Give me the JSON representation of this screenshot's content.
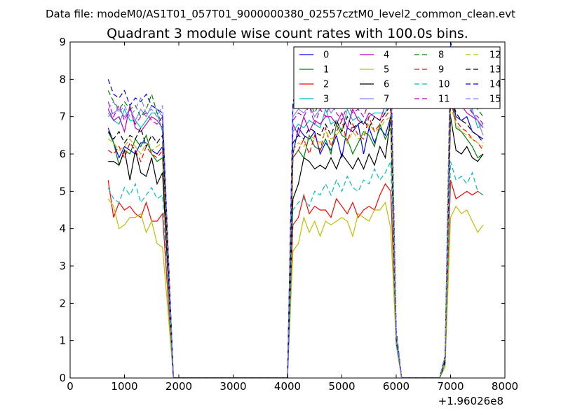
{
  "chart_data": {
    "type": "line",
    "suptitle": "Data file: modeM0/AS1T01_057T01_9000000380_02557cztM0_level2_common_clean.evt",
    "title": "Quadrant 3 module wise count rates with 100.0s bins.",
    "xlabel": "",
    "ylabel": "",
    "x_offset_label": "+1.96026e8",
    "xlim": [
      0,
      8000
    ],
    "ylim": [
      0,
      9
    ],
    "xticks": [
      0,
      1000,
      2000,
      3000,
      4000,
      5000,
      6000,
      7000,
      8000
    ],
    "yticks": [
      0,
      1,
      2,
      3,
      4,
      5,
      6,
      7,
      8,
      9
    ],
    "grid": false,
    "legend_position": "top-right",
    "x": [
      700,
      800,
      900,
      1000,
      1100,
      1200,
      1300,
      1400,
      1500,
      1600,
      1700,
      1800,
      1900,
      2000,
      2100,
      2200,
      2300,
      2400,
      2500,
      2600,
      2700,
      2800,
      2900,
      3000,
      3100,
      3200,
      3300,
      3400,
      3500,
      3600,
      3700,
      3800,
      3900,
      4000,
      4100,
      4200,
      4300,
      4400,
      4500,
      4600,
      4700,
      4800,
      4900,
      5000,
      5100,
      5200,
      5300,
      5400,
      5500,
      5600,
      5700,
      5800,
      5900,
      6000,
      6100,
      6200,
      6300,
      6400,
      6500,
      6600,
      6700,
      6800,
      6900,
      7000,
      7100,
      7200,
      7300,
      7400,
      7500,
      7600
    ],
    "series": [
      {
        "name": "0",
        "color": "#0000ff",
        "dash": "",
        "values": [
          6.7,
          6.3,
          5.9,
          6.2,
          6.1,
          6.0,
          6.3,
          6.3,
          6.1,
          6.0,
          6.2,
          3.0,
          0,
          0,
          0,
          0,
          0,
          0,
          0,
          0,
          0,
          0,
          0,
          0,
          0,
          0,
          0,
          0,
          0,
          0,
          0,
          0,
          0,
          0,
          6.0,
          6.7,
          6.5,
          6.4,
          6.6,
          6.0,
          6.3,
          6.1,
          6.5,
          5.9,
          6.7,
          6.6,
          6.8,
          6.0,
          6.7,
          6.3,
          6.7,
          6.5,
          7.0,
          1.0,
          0,
          0,
          0,
          0,
          0,
          0,
          0,
          0,
          0.5,
          7.7,
          7.0,
          6.9,
          7.0,
          6.6,
          6.5,
          6.4
        ]
      },
      {
        "name": "1",
        "color": "#008000",
        "dash": "",
        "values": [
          6.6,
          6.3,
          5.7,
          6.1,
          6.0,
          6.4,
          6.2,
          6.5,
          6.0,
          5.8,
          5.9,
          3.0,
          0,
          0,
          0,
          0,
          0,
          0,
          0,
          0,
          0,
          0,
          0,
          0,
          0,
          0,
          0,
          0,
          0,
          0,
          0,
          0,
          0,
          0,
          5.9,
          6.1,
          5.9,
          6.5,
          6.2,
          6.1,
          6.4,
          6.0,
          6.8,
          6.5,
          6.4,
          6.0,
          6.3,
          6.6,
          6.5,
          6.2,
          6.8,
          6.4,
          6.7,
          1.0,
          0,
          0,
          0,
          0,
          0,
          0,
          0,
          0,
          0.5,
          7.8,
          6.7,
          6.6,
          6.4,
          6.2,
          5.9,
          6.0
        ]
      },
      {
        "name": "2",
        "color": "#ff0000",
        "dash": "",
        "values": [
          5.3,
          4.3,
          4.7,
          4.5,
          4.6,
          4.4,
          4.3,
          4.7,
          4.2,
          4.2,
          4.4,
          2.2,
          0,
          0,
          0,
          0,
          0,
          0,
          0,
          0,
          0,
          0,
          0,
          0,
          0,
          0,
          0,
          0,
          0,
          0,
          0,
          0,
          0,
          0,
          4.1,
          4.3,
          4.9,
          4.4,
          4.6,
          4.5,
          4.5,
          4.3,
          4.8,
          4.6,
          4.4,
          4.7,
          4.3,
          4.5,
          4.6,
          4.5,
          4.9,
          5.2,
          5.0,
          1.0,
          0,
          0,
          0,
          0,
          0,
          0,
          0,
          0,
          0.4,
          5.3,
          4.8,
          4.9,
          5.0,
          4.9,
          5.0,
          4.9
        ]
      },
      {
        "name": "3",
        "color": "#00bfbf",
        "dash": "",
        "values": [
          7.1,
          6.9,
          6.8,
          7.2,
          6.9,
          6.9,
          6.7,
          6.9,
          7.1,
          7.1,
          6.6,
          3.3,
          0,
          0,
          0,
          0,
          0,
          0,
          0,
          0,
          0,
          0,
          0,
          0,
          0,
          0,
          0,
          0,
          0,
          0,
          0,
          0,
          0,
          0,
          6.6,
          6.8,
          6.7,
          6.9,
          6.8,
          6.7,
          7.2,
          6.8,
          6.9,
          6.6,
          7.2,
          6.9,
          7.0,
          6.8,
          7.0,
          7.1,
          7.1,
          7.1,
          7.5,
          1.1,
          0,
          0,
          0,
          0,
          0,
          0,
          0,
          0,
          0.5,
          7.9,
          7.5,
          7.3,
          7.4,
          7.2,
          6.7,
          6.8
        ]
      },
      {
        "name": "4",
        "color": "#bf00bf",
        "dash": "",
        "values": [
          7.2,
          6.9,
          7.0,
          6.6,
          7.3,
          6.7,
          6.6,
          6.8,
          7.0,
          6.9,
          6.7,
          3.3,
          0,
          0,
          0,
          0,
          0,
          0,
          0,
          0,
          0,
          0,
          0,
          0,
          0,
          0,
          0,
          0,
          0,
          0,
          0,
          0,
          0,
          0,
          6.8,
          6.5,
          7.0,
          6.6,
          6.9,
          6.8,
          7.0,
          7.0,
          6.8,
          7.1,
          6.7,
          7.2,
          6.9,
          6.8,
          7.1,
          7.0,
          6.9,
          7.3,
          7.5,
          1.1,
          0,
          0,
          0,
          0,
          0,
          0,
          0,
          0,
          0.5,
          8.0,
          7.6,
          7.3,
          7.1,
          7.0,
          6.9,
          6.7
        ]
      },
      {
        "name": "5",
        "color": "#bfbf00",
        "dash": "",
        "values": [
          4.8,
          4.6,
          4.0,
          4.1,
          4.3,
          4.3,
          4.4,
          3.9,
          4.2,
          3.6,
          3.5,
          1.8,
          0,
          0,
          0,
          0,
          0,
          0,
          0,
          0,
          0,
          0,
          0,
          0,
          0,
          0,
          0,
          0,
          0,
          0,
          0,
          0,
          0,
          0,
          3.4,
          3.6,
          4.3,
          3.9,
          4.2,
          3.8,
          4.2,
          4.1,
          4.2,
          4.3,
          4.2,
          3.8,
          4.4,
          4.3,
          4.2,
          4.5,
          4.5,
          4.7,
          4.0,
          0.9,
          0,
          0,
          0,
          0,
          0,
          0,
          0,
          0,
          0.3,
          4.3,
          4.6,
          4.4,
          4.5,
          4.2,
          3.9,
          4.1
        ]
      },
      {
        "name": "6",
        "color": "#000000",
        "dash": "",
        "values": [
          5.8,
          5.8,
          5.7,
          6.1,
          5.3,
          6.1,
          5.5,
          5.4,
          5.9,
          5.2,
          5.5,
          2.8,
          0,
          0,
          0,
          0,
          0,
          0,
          0,
          0,
          0,
          0,
          0,
          0,
          0,
          0,
          0,
          0,
          0,
          0,
          0,
          0,
          0,
          0,
          4.8,
          5.2,
          5.9,
          5.8,
          5.6,
          5.7,
          5.6,
          5.9,
          5.6,
          6.0,
          5.8,
          5.6,
          5.9,
          5.6,
          6.0,
          5.7,
          6.2,
          5.9,
          7.0,
          1.0,
          0,
          0,
          0,
          0,
          0,
          0,
          0,
          0,
          0.4,
          7.0,
          6.1,
          6.0,
          6.2,
          5.9,
          5.8,
          6.0
        ]
      },
      {
        "name": "7",
        "color": "#7f7fff",
        "dash": "",
        "values": [
          7.0,
          7.1,
          7.2,
          7.0,
          7.2,
          6.9,
          7.2,
          7.0,
          7.3,
          7.2,
          7.0,
          3.4,
          0,
          0,
          0,
          0,
          0,
          0,
          0,
          0,
          0,
          0,
          0,
          0,
          0,
          0,
          0,
          0,
          0,
          0,
          0,
          0,
          0,
          0,
          7.0,
          7.2,
          7.1,
          7.3,
          7.0,
          7.2,
          7.4,
          7.1,
          7.3,
          7.6,
          7.2,
          7.4,
          7.5,
          7.3,
          7.7,
          7.4,
          7.8,
          8.1,
          8.3,
          1.2,
          0,
          0,
          0,
          0,
          0,
          0,
          0,
          0,
          0.6,
          8.5,
          8.2,
          8.0,
          7.6,
          7.1,
          6.9,
          6.5
        ]
      },
      {
        "name": "8",
        "color": "#008000",
        "dash": "7,4",
        "values": [
          7.7,
          7.4,
          7.2,
          7.4,
          7.2,
          7.3,
          7.0,
          7.2,
          7.6,
          7.1,
          6.8,
          3.4,
          0,
          0,
          0,
          0,
          0,
          0,
          0,
          0,
          0,
          0,
          0,
          0,
          0,
          0,
          0,
          0,
          0,
          0,
          0,
          0,
          0,
          0,
          7.3,
          7.6,
          7.2,
          7.4,
          7.1,
          7.4,
          7.6,
          7.3,
          7.8,
          7.5,
          7.3,
          7.6,
          7.8,
          7.5,
          7.7,
          7.6,
          7.9,
          7.8,
          8.0,
          1.2,
          0,
          0,
          0,
          0,
          0,
          0,
          0,
          0,
          0.6,
          8.3,
          7.7,
          7.5,
          7.4,
          7.3,
          7.2,
          7.0
        ]
      },
      {
        "name": "9",
        "color": "#ff0000",
        "dash": "7,4",
        "values": [
          6.1,
          6.0,
          6.2,
          5.9,
          6.3,
          6.1,
          5.8,
          6.2,
          6.0,
          5.9,
          6.1,
          3.0,
          0,
          0,
          0,
          0,
          0,
          0,
          0,
          0,
          0,
          0,
          0,
          0,
          0,
          0,
          0,
          0,
          0,
          0,
          0,
          0,
          0,
          0,
          5.9,
          6.1,
          6.4,
          6.0,
          6.5,
          6.1,
          6.7,
          6.2,
          6.6,
          6.9,
          6.3,
          6.8,
          6.5,
          6.4,
          7.0,
          6.6,
          6.8,
          7.0,
          7.2,
          1.1,
          0,
          0,
          0,
          0,
          0,
          0,
          0,
          0,
          0.5,
          7.4,
          6.9,
          6.7,
          6.6,
          6.4,
          6.3,
          6.1
        ]
      },
      {
        "name": "10",
        "color": "#00bfbf",
        "dash": "7,4",
        "values": [
          5.1,
          4.8,
          4.7,
          5.1,
          4.9,
          5.2,
          4.7,
          4.9,
          5.1,
          4.8,
          4.9,
          2.4,
          0,
          0,
          0,
          0,
          0,
          0,
          0,
          0,
          0,
          0,
          0,
          0,
          0,
          0,
          0,
          0,
          0,
          0,
          0,
          0,
          0,
          0,
          4.5,
          4.7,
          4.8,
          4.6,
          5.0,
          4.9,
          5.2,
          4.9,
          5.3,
          5.0,
          5.4,
          5.1,
          5.0,
          5.3,
          5.2,
          5.6,
          5.3,
          5.5,
          5.8,
          0.9,
          0,
          0,
          0,
          0,
          0,
          0,
          0,
          0,
          0.4,
          5.8,
          5.3,
          5.4,
          5.2,
          5.5,
          5.0,
          4.9
        ]
      },
      {
        "name": "11",
        "color": "#bf00bf",
        "dash": "7,4",
        "values": [
          7.4,
          7.0,
          7.3,
          6.9,
          7.2,
          6.8,
          7.0,
          7.1,
          6.9,
          6.8,
          7.0,
          3.4,
          0,
          0,
          0,
          0,
          0,
          0,
          0,
          0,
          0,
          0,
          0,
          0,
          0,
          0,
          0,
          0,
          0,
          0,
          0,
          0,
          0,
          0,
          6.9,
          7.1,
          7.0,
          7.3,
          6.8,
          7.2,
          7.0,
          7.4,
          7.1,
          6.9,
          7.3,
          7.1,
          7.2,
          7.0,
          7.4,
          7.2,
          7.5,
          7.4,
          7.6,
          1.1,
          0,
          0,
          0,
          0,
          0,
          0,
          0,
          0,
          0.5,
          8.1,
          7.6,
          7.4,
          7.3,
          7.1,
          7.0,
          6.8
        ]
      },
      {
        "name": "12",
        "color": "#bfbf00",
        "dash": "7,4",
        "values": [
          6.4,
          6.3,
          6.1,
          6.2,
          6.4,
          6.2,
          6.0,
          6.3,
          6.1,
          6.2,
          6.3,
          3.1,
          0,
          0,
          0,
          0,
          0,
          0,
          0,
          0,
          0,
          0,
          0,
          0,
          0,
          0,
          0,
          0,
          0,
          0,
          0,
          0,
          0,
          0,
          6.1,
          6.3,
          6.2,
          6.5,
          6.4,
          6.3,
          6.6,
          6.4,
          6.5,
          6.7,
          6.3,
          6.6,
          6.4,
          6.5,
          6.8,
          6.6,
          6.7,
          6.9,
          7.0,
          1.1,
          0,
          0,
          0,
          0,
          0,
          0,
          0,
          0,
          0.5,
          7.3,
          6.8,
          6.6,
          6.5,
          6.4,
          6.3,
          6.2
        ]
      },
      {
        "name": "13",
        "color": "#000000",
        "dash": "7,4",
        "values": [
          6.6,
          6.4,
          6.6,
          6.3,
          6.5,
          6.4,
          6.7,
          6.2,
          6.5,
          6.3,
          6.5,
          3.2,
          0,
          0,
          0,
          0,
          0,
          0,
          0,
          0,
          0,
          0,
          0,
          0,
          0,
          0,
          0,
          0,
          0,
          0,
          0,
          0,
          0,
          0,
          6.3,
          6.5,
          6.4,
          6.7,
          6.6,
          6.5,
          6.8,
          6.5,
          6.9,
          6.6,
          7.0,
          6.7,
          6.8,
          6.9,
          6.7,
          7.0,
          6.9,
          7.1,
          7.3,
          1.1,
          0,
          0,
          0,
          0,
          0,
          0,
          0,
          0,
          0.5,
          7.6,
          7.1,
          6.9,
          6.8,
          6.6,
          6.5,
          6.3
        ]
      },
      {
        "name": "14",
        "color": "#0000ff",
        "dash": "7,4",
        "values": [
          8.0,
          7.6,
          7.5,
          7.7,
          7.3,
          7.5,
          7.4,
          7.6,
          7.3,
          7.2,
          7.1,
          3.6,
          0,
          0,
          0,
          0,
          0,
          0,
          0,
          0,
          0,
          0,
          0,
          0,
          0,
          0,
          0,
          0,
          0,
          0,
          0,
          0,
          0,
          0,
          7.4,
          7.8,
          7.5,
          7.9,
          7.6,
          7.8,
          8.0,
          7.7,
          8.1,
          7.9,
          7.8,
          8.2,
          8.0,
          7.9,
          8.3,
          8.1,
          8.4,
          8.6,
          8.8,
          1.3,
          0,
          0,
          0,
          0,
          0,
          0,
          0,
          0,
          0.6,
          9.0,
          8.5,
          8.2,
          8.0,
          7.8,
          7.6,
          7.4
        ]
      },
      {
        "name": "15",
        "color": "#7f7fff",
        "dash": "7,4",
        "values": [
          7.2,
          7.4,
          7.1,
          7.3,
          7.0,
          7.2,
          7.5,
          7.1,
          7.2,
          7.0,
          7.3,
          3.5,
          0,
          0,
          0,
          0,
          0,
          0,
          0,
          0,
          0,
          0,
          0,
          0,
          0,
          0,
          0,
          0,
          0,
          0,
          0,
          0,
          0,
          0,
          7.2,
          7.5,
          7.3,
          7.6,
          7.4,
          7.6,
          7.8,
          7.5,
          7.9,
          7.7,
          7.8,
          8.0,
          7.8,
          7.7,
          8.1,
          7.9,
          8.2,
          8.4,
          8.6,
          1.2,
          0,
          0,
          0,
          0,
          0,
          0,
          0,
          0,
          0.6,
          8.8,
          8.4,
          8.2,
          7.9,
          7.7,
          7.5,
          7.3
        ]
      }
    ]
  }
}
